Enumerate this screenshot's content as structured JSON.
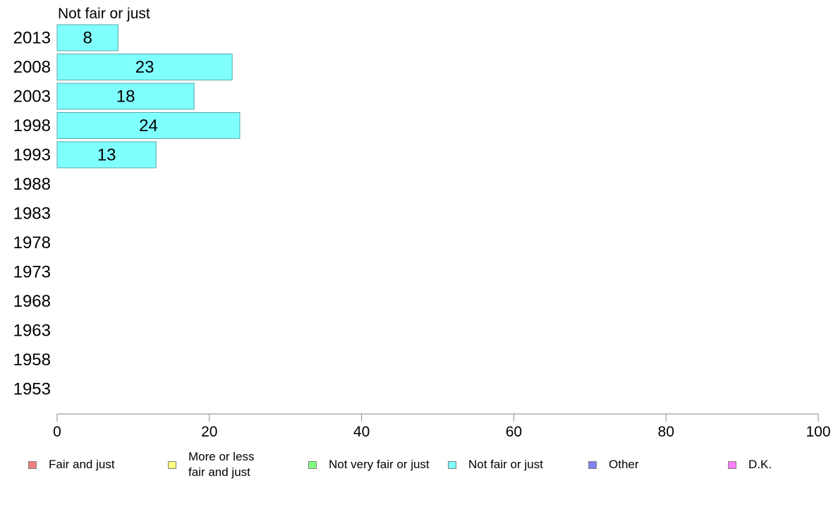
{
  "chart_data": {
    "type": "bar",
    "orientation": "horizontal",
    "title": "Not fair or just",
    "categories": [
      "2013",
      "2008",
      "2003",
      "1998",
      "1993",
      "1988",
      "1983",
      "1978",
      "1973",
      "1968",
      "1963",
      "1958",
      "1953"
    ],
    "series": [
      {
        "name": "Not fair or just",
        "color": "#80ffff",
        "values": [
          8,
          23,
          18,
          24,
          13,
          null,
          null,
          null,
          null,
          null,
          null,
          null,
          null
        ],
        "labels": [
          "8",
          "23",
          "18",
          "24",
          "13",
          "",
          "",
          "",
          "",
          "",
          "",
          "",
          ""
        ]
      }
    ],
    "xlim": [
      0,
      100
    ],
    "xticks": [
      0,
      20,
      40,
      60,
      80,
      100
    ],
    "grid": false,
    "legend_position": "bottom",
    "legend": [
      {
        "label": "Fair and just",
        "color": "#f08080"
      },
      {
        "label": "More or less\nfair and just",
        "color": "#ffff80"
      },
      {
        "label": "Not very fair or just",
        "color": "#80ff80"
      },
      {
        "label": "Not fair or just",
        "color": "#80ffff"
      },
      {
        "label": "Other",
        "color": "#8080f0"
      },
      {
        "label": "D.K.",
        "color": "#ff80ff"
      }
    ]
  }
}
